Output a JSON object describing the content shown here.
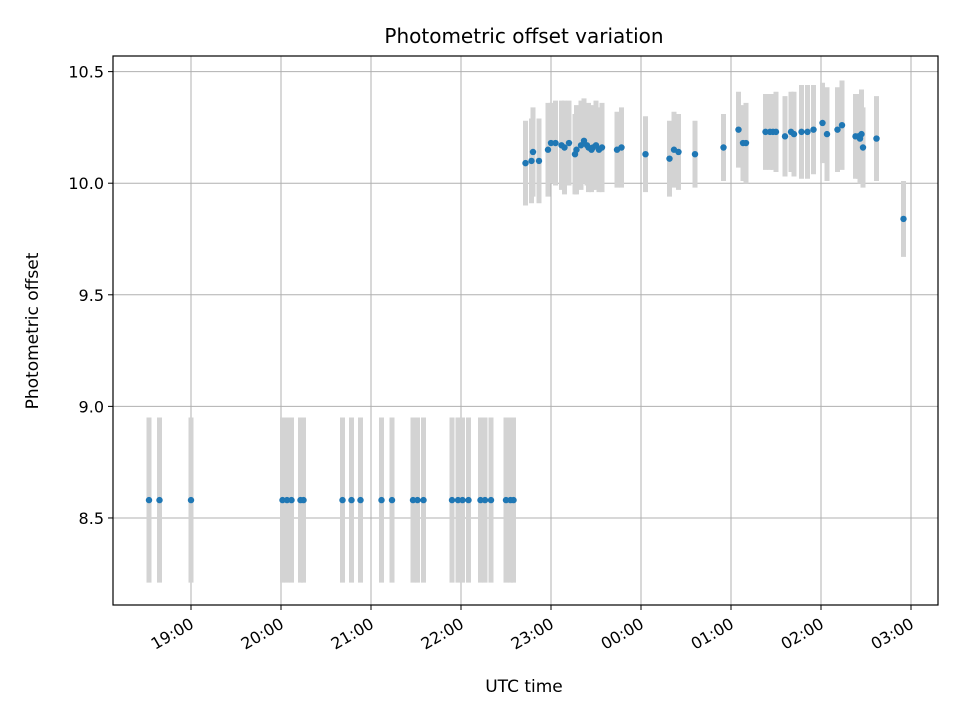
{
  "chart_data": {
    "type": "scatter",
    "title": "Photometric offset variation",
    "xlabel": "UTC time",
    "ylabel": "Photometric offset",
    "x_tick_labels": [
      "19:00",
      "20:00",
      "21:00",
      "22:00",
      "23:00",
      "00:00",
      "01:00",
      "02:00",
      "03:00"
    ],
    "x_tick_hours": [
      19,
      20,
      21,
      22,
      23,
      24,
      25,
      26,
      27
    ],
    "y_tick_labels": [
      "8.5",
      "9.0",
      "9.5",
      "10.0",
      "10.5"
    ],
    "y_tick_values": [
      8.5,
      9.0,
      9.5,
      10.0,
      10.5
    ],
    "xlim": [
      "18:08",
      "03:18"
    ],
    "ylim": [
      8.11,
      10.57
    ],
    "grid": true,
    "point_color": "#1f77b4",
    "errorbar_color": "#d3d3d3",
    "x": [
      "18:32",
      "18:39",
      "19:00",
      "20:01",
      "20:04",
      "20:07",
      "20:13",
      "20:15",
      "20:41",
      "20:47",
      "20:53",
      "21:07",
      "21:14",
      "21:28",
      "21:31",
      "21:35",
      "21:54",
      "21:58",
      "22:01",
      "22:05",
      "22:13",
      "22:16",
      "22:20",
      "22:30",
      "22:33",
      "22:35",
      "22:43",
      "22:47",
      "22:48",
      "22:52",
      "22:58",
      "23:00",
      "23:03",
      "23:07",
      "23:09",
      "23:12",
      "23:16",
      "23:17",
      "23:20",
      "23:22",
      "23:24",
      "23:25",
      "23:27",
      "23:28",
      "23:30",
      "23:32",
      "23:34",
      "23:44",
      "23:47",
      "00:03",
      "00:19",
      "00:22",
      "00:25",
      "00:36",
      "00:55",
      "01:05",
      "01:08",
      "01:10",
      "01:23",
      "01:26",
      "01:28",
      "01:30",
      "01:36",
      "01:40",
      "01:42",
      "01:47",
      "01:51",
      "01:55",
      "02:01",
      "02:04",
      "02:11",
      "02:14",
      "02:23",
      "02:25",
      "02:26",
      "02:27",
      "02:28",
      "02:37",
      "02:55"
    ],
    "y": [
      8.58,
      8.58,
      8.58,
      8.58,
      8.58,
      8.58,
      8.58,
      8.58,
      8.58,
      8.58,
      8.58,
      8.58,
      8.58,
      8.58,
      8.58,
      8.58,
      8.58,
      8.58,
      8.58,
      8.58,
      8.58,
      8.58,
      8.58,
      8.58,
      8.58,
      8.58,
      10.09,
      10.1,
      10.14,
      10.1,
      10.15,
      10.18,
      10.18,
      10.17,
      10.16,
      10.18,
      10.13,
      10.15,
      10.17,
      10.19,
      10.17,
      10.16,
      10.15,
      10.16,
      10.17,
      10.15,
      10.16,
      10.15,
      10.16,
      10.13,
      10.11,
      10.15,
      10.14,
      10.13,
      10.16,
      10.24,
      10.18,
      10.18,
      10.23,
      10.23,
      10.23,
      10.23,
      10.21,
      10.23,
      10.22,
      10.23,
      10.23,
      10.24,
      10.27,
      10.22,
      10.24,
      10.26,
      10.21,
      10.21,
      10.2,
      10.22,
      10.16,
      10.2,
      9.84
    ],
    "y_err": [
      0.37,
      0.37,
      0.37,
      0.37,
      0.37,
      0.37,
      0.37,
      0.37,
      0.37,
      0.37,
      0.37,
      0.37,
      0.37,
      0.37,
      0.37,
      0.37,
      0.37,
      0.37,
      0.37,
      0.37,
      0.37,
      0.37,
      0.37,
      0.37,
      0.37,
      0.37,
      0.19,
      0.19,
      0.2,
      0.19,
      0.21,
      0.18,
      0.19,
      0.2,
      0.21,
      0.19,
      0.18,
      0.2,
      0.2,
      0.19,
      0.18,
      0.2,
      0.19,
      0.19,
      0.2,
      0.19,
      0.2,
      0.17,
      0.18,
      0.17,
      0.17,
      0.17,
      0.17,
      0.15,
      0.15,
      0.17,
      0.17,
      0.18,
      0.17,
      0.17,
      0.17,
      0.18,
      0.18,
      0.18,
      0.19,
      0.21,
      0.21,
      0.2,
      0.18,
      0.21,
      0.19,
      0.2,
      0.19,
      0.19,
      0.2,
      0.2,
      0.18,
      0.19,
      0.17
    ]
  }
}
